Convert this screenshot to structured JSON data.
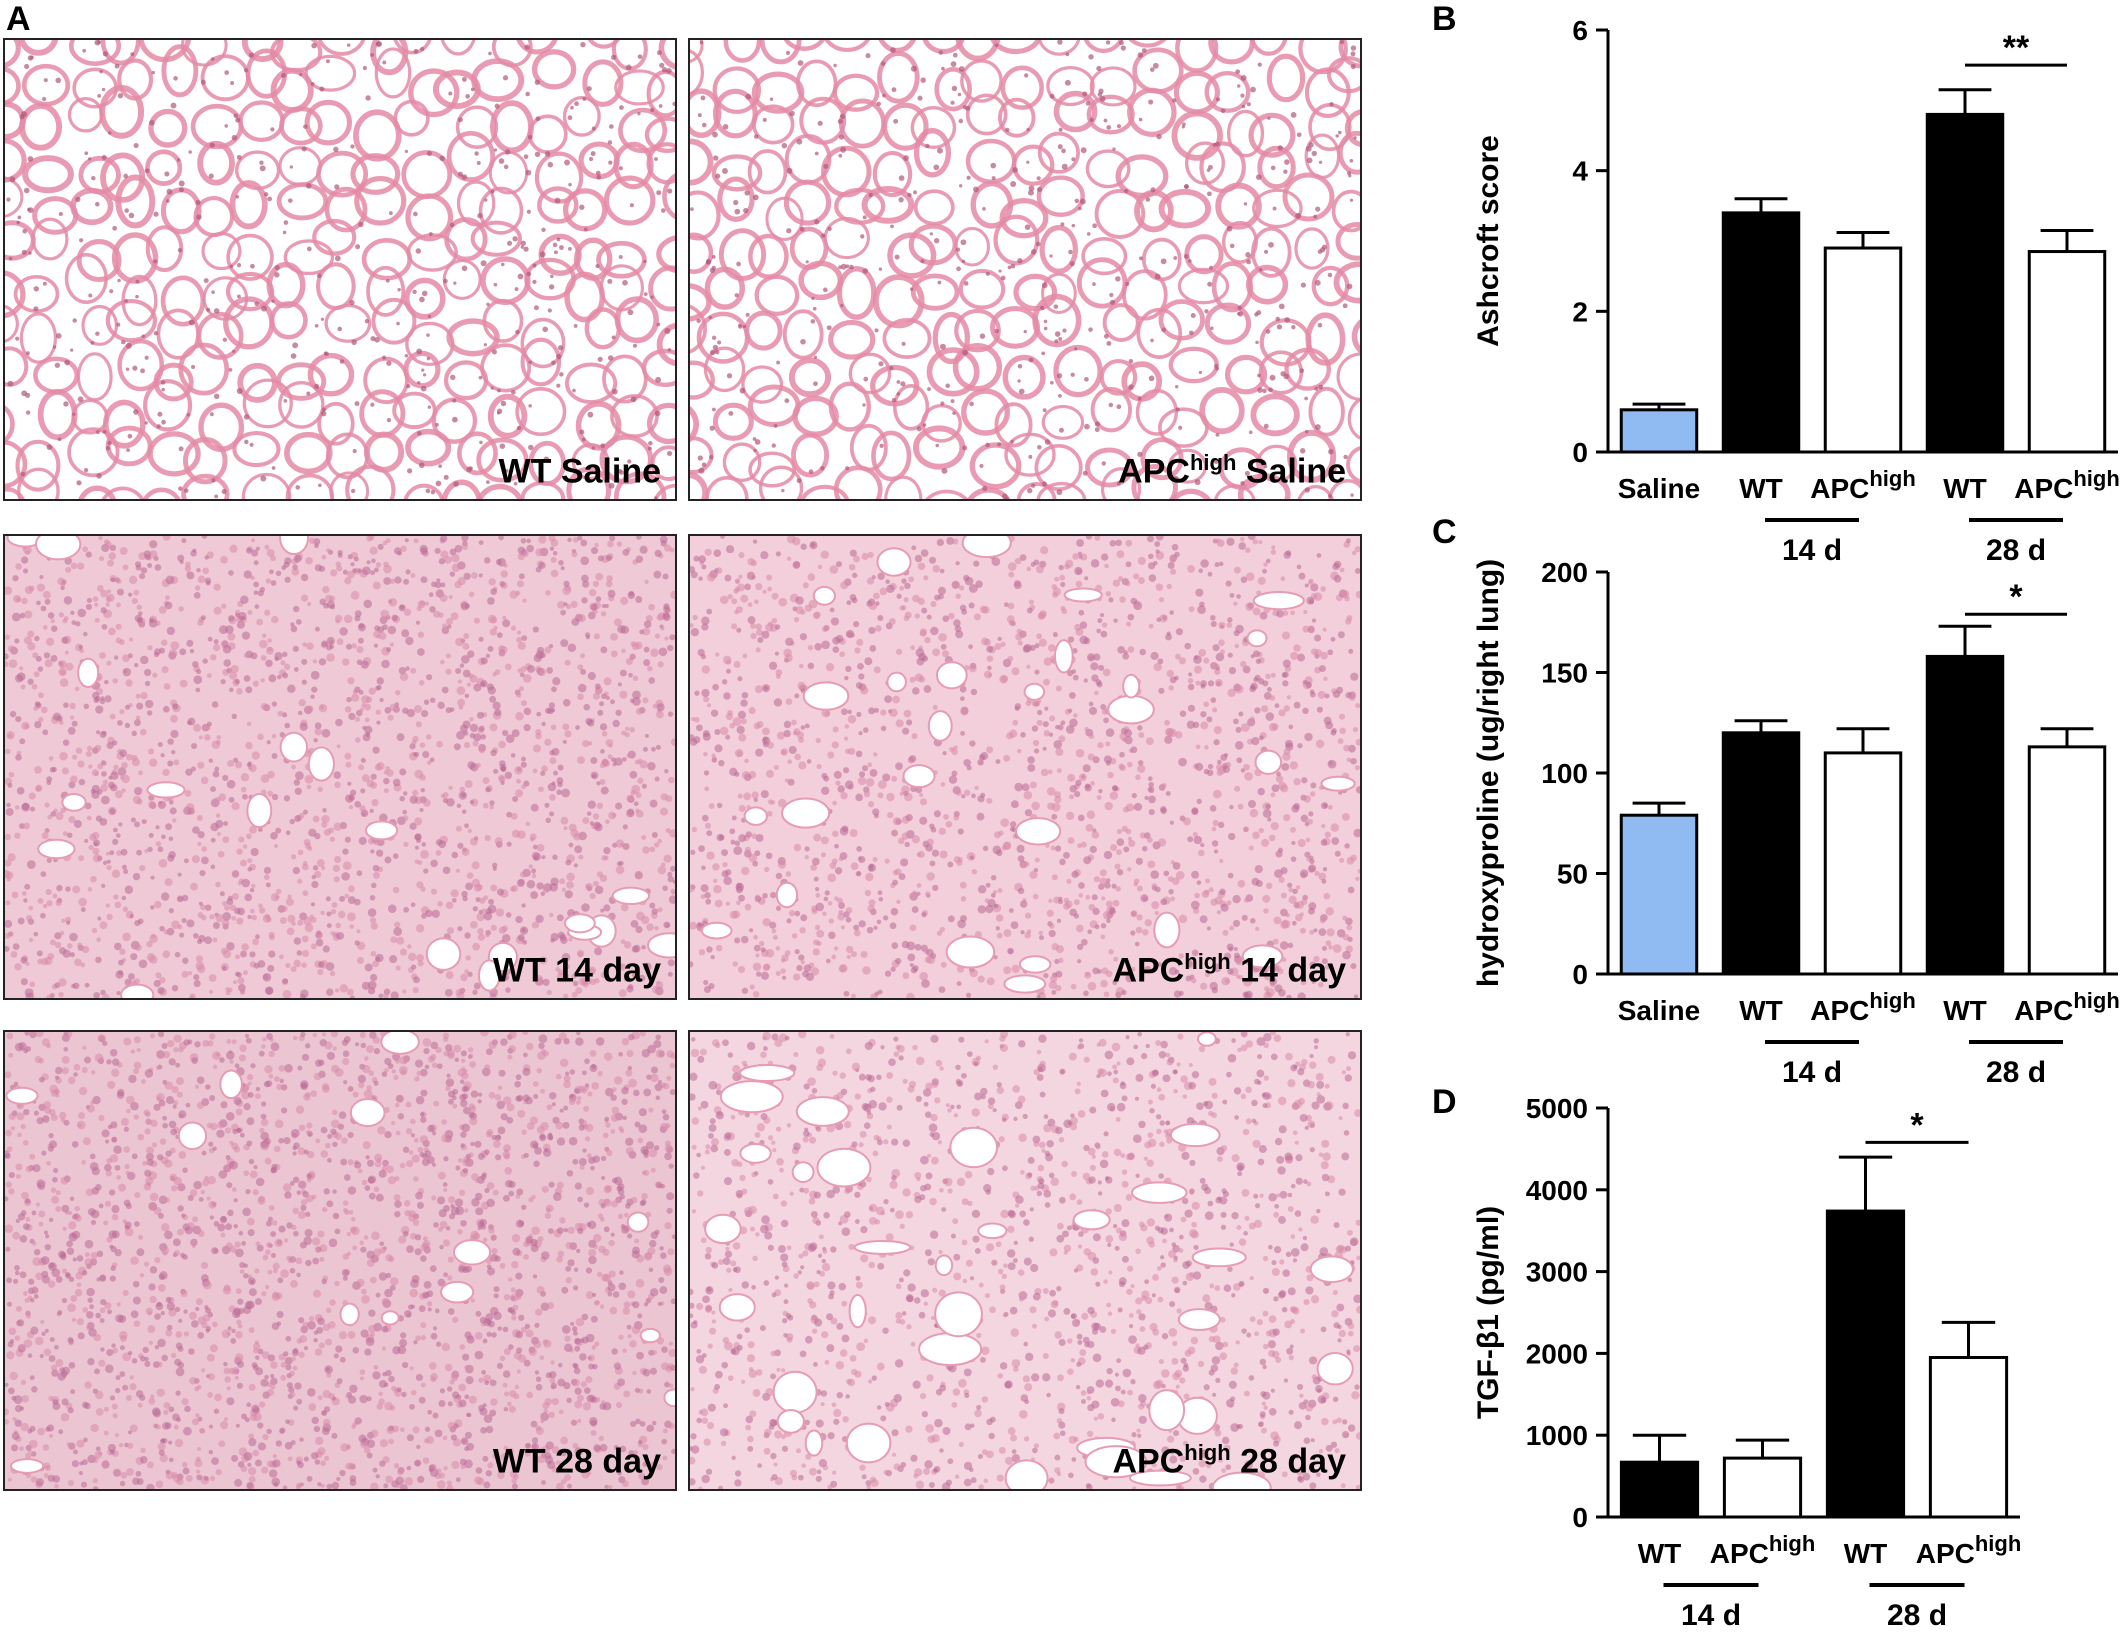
{
  "panel_letters": {
    "a": "A",
    "b": "B",
    "c": "C",
    "d": "D"
  },
  "micrographs": [
    {
      "pre": "WT Saline",
      "sup": "",
      "post": "",
      "density": 0.3,
      "bg": "#ffffff"
    },
    {
      "pre": "APC",
      "sup": "high",
      "post": " Saline",
      "density": 0.3,
      "bg": "#ffffff"
    },
    {
      "pre": "WT 14 day",
      "sup": "",
      "post": "",
      "density": 0.82,
      "bg": "#efc9d6"
    },
    {
      "pre": "APC",
      "sup": "high",
      "post": " 14 day",
      "density": 0.72,
      "bg": "#f2cfda"
    },
    {
      "pre": "WT 28 day",
      "sup": "",
      "post": "",
      "density": 0.92,
      "bg": "#ecc5d3"
    },
    {
      "pre": "APC",
      "sup": "high",
      "post": " 28 day",
      "density": 0.62,
      "bg": "#f4d6e0"
    }
  ],
  "colors": {
    "saline": "#8fbaf2",
    "wt": "#000000",
    "apc": "#ffffff",
    "stroke": "#000000"
  },
  "chart_data": [
    {
      "type": "bar",
      "panel": "B",
      "ylabel": "Ashcroft score",
      "ylim": [
        0,
        6
      ],
      "yticks": [
        0,
        2,
        4,
        6
      ],
      "categories": [
        {
          "label": "Saline",
          "sup": "",
          "group": "saline"
        },
        {
          "label": "WT",
          "sup": "",
          "group": "wt"
        },
        {
          "label": "APC",
          "sup": "high",
          "group": "apc"
        },
        {
          "label": "WT",
          "sup": "",
          "group": "wt"
        },
        {
          "label": "APC",
          "sup": "high",
          "group": "apc"
        }
      ],
      "values": [
        0.6,
        3.4,
        2.9,
        4.8,
        2.85
      ],
      "errors": [
        0.08,
        0.2,
        0.22,
        0.35,
        0.3
      ],
      "groups": [
        {
          "label": "14 d",
          "from": 1,
          "to": 2
        },
        {
          "label": "28 d",
          "from": 3,
          "to": 4
        }
      ],
      "significance": [
        {
          "from": 3,
          "to": 4,
          "label": "**",
          "y": 5.5
        }
      ]
    },
    {
      "type": "bar",
      "panel": "C",
      "ylabel": "hydroxyproline (ug/right lung)",
      "ylim": [
        0,
        200
      ],
      "yticks": [
        0,
        50,
        100,
        150,
        200
      ],
      "categories": [
        {
          "label": "Saline",
          "sup": "",
          "group": "saline"
        },
        {
          "label": "WT",
          "sup": "",
          "group": "wt"
        },
        {
          "label": "APC",
          "sup": "high",
          "group": "apc"
        },
        {
          "label": "WT",
          "sup": "",
          "group": "wt"
        },
        {
          "label": "APC",
          "sup": "high",
          "group": "apc"
        }
      ],
      "values": [
        79,
        120,
        110,
        158,
        113
      ],
      "errors": [
        6,
        6,
        12,
        15,
        9
      ],
      "groups": [
        {
          "label": "14 d",
          "from": 1,
          "to": 2
        },
        {
          "label": "28 d",
          "from": 3,
          "to": 4
        }
      ],
      "significance": [
        {
          "from": 3,
          "to": 4,
          "label": "*",
          "y": 179
        }
      ]
    },
    {
      "type": "bar",
      "panel": "D",
      "ylabel": "TGF-β1 (pg/ml)",
      "ylim": [
        0,
        5000
      ],
      "yticks": [
        0,
        1000,
        2000,
        3000,
        4000,
        5000
      ],
      "categories": [
        {
          "label": "WT",
          "sup": "",
          "group": "wt"
        },
        {
          "label": "APC",
          "sup": "high",
          "group": "apc"
        },
        {
          "label": "WT",
          "sup": "",
          "group": "wt"
        },
        {
          "label": "APC",
          "sup": "high",
          "group": "apc"
        }
      ],
      "values": [
        670,
        720,
        3740,
        1950
      ],
      "errors": [
        330,
        220,
        660,
        430
      ],
      "groups": [
        {
          "label": "14 d",
          "from": 0,
          "to": 1
        },
        {
          "label": "28 d",
          "from": 2,
          "to": 3
        }
      ],
      "significance": [
        {
          "from": 2,
          "to": 3,
          "label": "*",
          "y": 4580
        }
      ]
    }
  ]
}
